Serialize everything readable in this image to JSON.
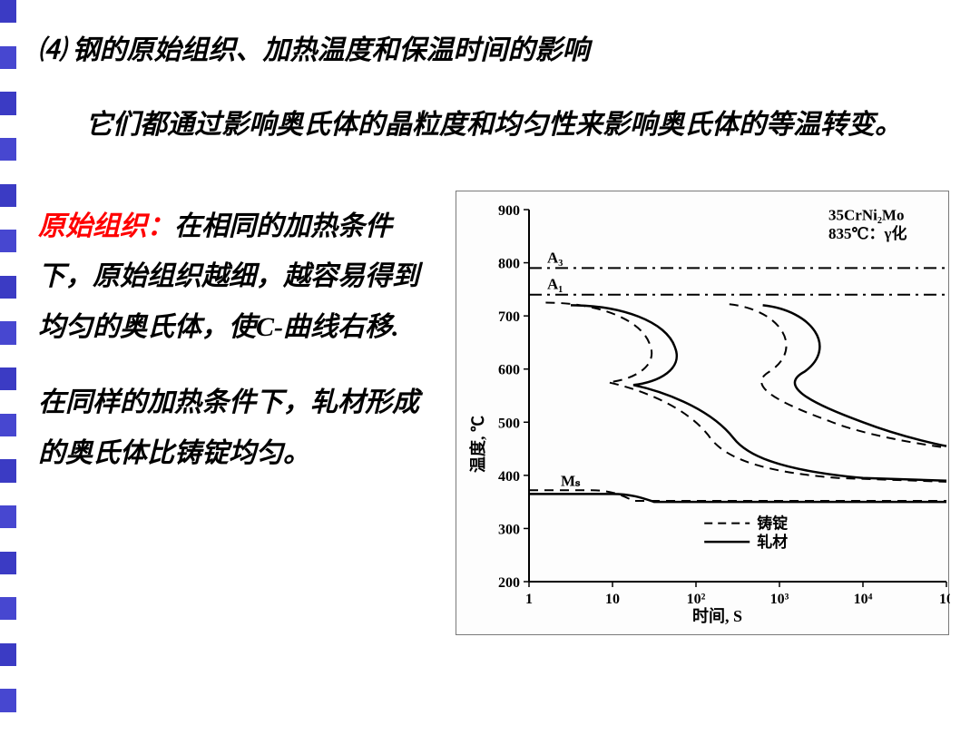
{
  "title": "⑷ 钢的原始组织、加热温度和保温时间的影响",
  "intro": "它们都通过影响奥氏体的晶粒度和均匀性来影响奥氏体的等温转变。",
  "para1_highlight": "原始组织：",
  "para1_rest": "在相同的加热条件下，原始组织越细，越容易得到均匀的奥氏体，使C-曲线右移.",
  "para2": "在同样的加热条件下，轧材形成的奥氏体比铸锭均匀。",
  "chart": {
    "type": "ttt-diagram",
    "material_label_1": "35CrNi₂Mo",
    "material_label_2": "835℃：γ化",
    "y_axis_label": "温度, ℃",
    "x_axis_label": "时间, S",
    "y_min": 200,
    "y_max": 900,
    "y_tick_step": 100,
    "y_ticks": [
      "200",
      "300",
      "400",
      "500",
      "600",
      "700",
      "800",
      "900"
    ],
    "x_ticks": [
      "1",
      "10",
      "10²",
      "10³",
      "10⁴",
      "10"
    ],
    "line_A3_label": "A₃",
    "line_A3_temp": 790,
    "line_A1_label": "A₁",
    "line_A1_temp": 740,
    "line_Ms_label": "Mₛ",
    "line_Ms_temp": 370,
    "legend_dashed": "铸锭",
    "legend_solid": "轧材",
    "colors": {
      "axis": "#000000",
      "line": "#000000",
      "background": "#ffffff"
    },
    "font_sizes": {
      "tick": 16,
      "label": 18,
      "legend": 17,
      "annotation": 17
    }
  },
  "left_strip_colors": [
    "#3b3bc4",
    "#ffffff",
    "#4747d0",
    "#ffffff",
    "#3b3bc4",
    "#ffffff",
    "#4747d0",
    "#ffffff",
    "#3b3bc4",
    "#ffffff",
    "#4747d0",
    "#ffffff",
    "#3b3bc4",
    "#ffffff",
    "#4747d0",
    "#ffffff",
    "#3b3bc4",
    "#ffffff",
    "#4747d0",
    "#ffffff",
    "#3b3bc4",
    "#ffffff",
    "#4747d0",
    "#ffffff",
    "#3b3bc4",
    "#ffffff",
    "#4747d0",
    "#ffffff",
    "#3b3bc4",
    "#ffffff",
    "#4747d0",
    "#ffffff"
  ]
}
